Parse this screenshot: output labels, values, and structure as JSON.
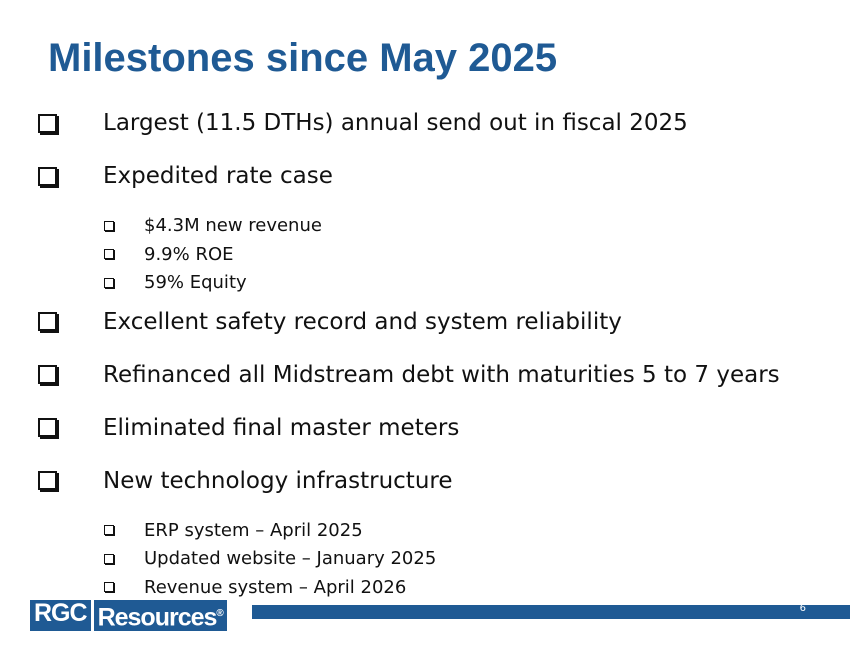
{
  "title": "Milestones since May 2025",
  "bullets": [
    {
      "text": "Largest (11.5 DTHs) annual send out in fiscal 2025"
    },
    {
      "text": "Expedited rate case",
      "sub": [
        "$4.3M new revenue",
        "9.9% ROE",
        "59% Equity"
      ]
    },
    {
      "text": "Excellent safety record and system reliability"
    },
    {
      "text": "Refinanced all Midstream debt with maturities 5 to 7 years"
    },
    {
      "text": "Eliminated final master meters"
    },
    {
      "text": "New technology infrastructure",
      "sub": [
        "ERP system – April 2025",
        "Updated website – January 2025",
        "Revenue system – April 2026"
      ]
    }
  ],
  "footer": {
    "logo_left": "RGC",
    "logo_right": "Resources",
    "logo_mark": "®",
    "page": "6"
  }
}
